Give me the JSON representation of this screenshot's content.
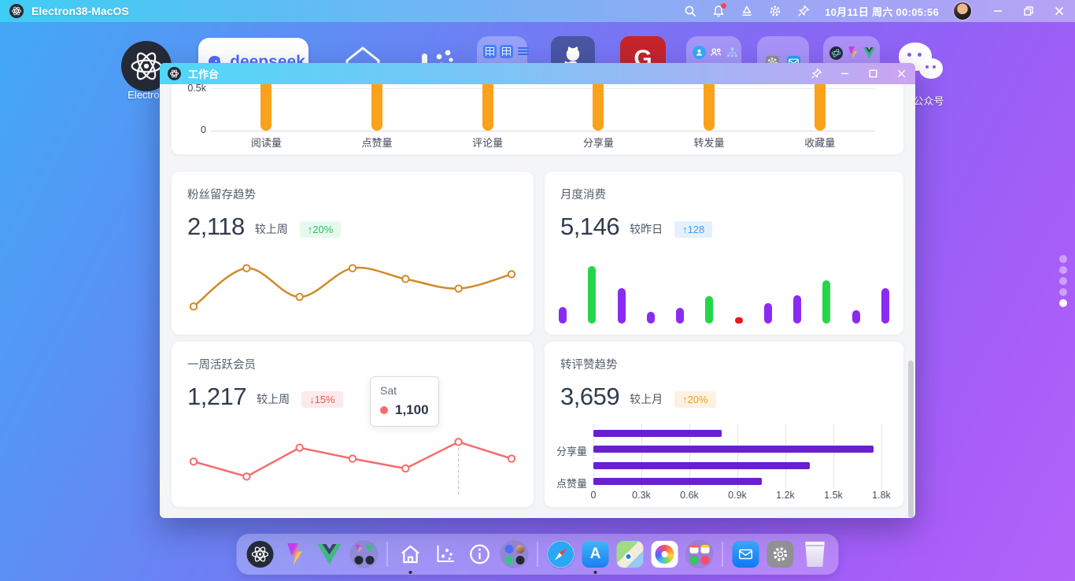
{
  "menubar": {
    "title": "Electron38-MacOS",
    "datetime": "10月11日 周六 00:05:56",
    "icons": [
      "search-icon",
      "bell-icon",
      "ink-icon",
      "gear-icon",
      "pin-icon",
      "avatar",
      "minimize",
      "restore",
      "close"
    ]
  },
  "desktop": {
    "labels": {
      "electron": "Electron",
      "deepseek": "deepseek",
      "wechat": "公众号"
    },
    "icons": [
      "electron",
      "deepseek",
      "home",
      "analytics",
      "table-group",
      "github",
      "g-app",
      "users-group",
      "tools-group",
      "dev-group",
      "wechat"
    ],
    "pagination_dots": {
      "count": 5,
      "active_index": 4
    }
  },
  "window": {
    "title": "工作台",
    "cards": {
      "top": {
        "y_ticks": [
          "0.5k",
          "0"
        ]
      },
      "fan": {
        "title": "粉丝留存趋势",
        "value": "2,118",
        "compare": "较上周",
        "badge": "↑20%"
      },
      "monthly": {
        "title": "月度消费",
        "value": "5,146",
        "compare": "较昨日",
        "badge": "↑128"
      },
      "weekly": {
        "title": "一周活跃会员",
        "value": "1,217",
        "compare": "较上周",
        "badge": "↓15%",
        "tooltip": {
          "label": "Sat",
          "value": "1,100"
        }
      },
      "trend": {
        "title": "转评赞趋势",
        "value": "3,659",
        "compare": "较上月",
        "badge": "↑20%"
      }
    }
  },
  "dock": {
    "items": [
      "electron",
      "vite",
      "vue",
      "dev-app-group",
      "divider",
      "home",
      "analytics",
      "info",
      "web-app-group",
      "divider",
      "safari",
      "app-store",
      "maps",
      "photos",
      "productivity-app-group",
      "divider",
      "mail",
      "settings",
      "trash"
    ],
    "active_items": [
      "home",
      "app-store"
    ]
  },
  "colors": {
    "bar_orange": "#faa21c",
    "line_orange": "#d08b2a",
    "line_red": "#f56c6c",
    "bar_purple": "#8a2cf0",
    "bar_green": "#26d64a",
    "bar_red": "#f21414",
    "hbar_purple": "#6a1fd0",
    "badge_green": "#21c35e",
    "badge_blue": "#3f9ef8",
    "badge_red": "#f25555",
    "badge_orange": "#f79b1d",
    "titlebar_gradient": [
      "#4fd8f8",
      "#cba4f3"
    ],
    "desktop_gradient": [
      "#41a9f6",
      "#b263f9"
    ]
  },
  "chart_data": [
    {
      "id": "content-stats",
      "type": "bar",
      "categories": [
        "阅读量",
        "点赞量",
        "评论量",
        "分享量",
        "转发量",
        "收藏量"
      ],
      "values": [
        500,
        500,
        500,
        500,
        500,
        500
      ],
      "values_note": "all bars clipped at top of scrolled view; visible y-range 0–0.5k",
      "y_ticks": [
        "0",
        "0.5k"
      ],
      "ylim": [
        0,
        500
      ],
      "color": "#faa21c",
      "grid": true
    },
    {
      "id": "fan-retention",
      "type": "line",
      "smooth": true,
      "values": [
        18,
        82,
        34,
        82,
        64,
        48,
        72
      ],
      "ylim": [
        0,
        100
      ],
      "values_note": "relative curve heights, no axes shown",
      "color": "#d08b2a",
      "stat": {
        "value": "2,118",
        "compare": "较上周",
        "delta": "↑20%"
      }
    },
    {
      "id": "monthly-consumption",
      "type": "bar",
      "values": [
        26,
        91,
        56,
        19,
        25,
        44,
        10,
        33,
        45,
        69,
        21,
        56
      ],
      "values_note": "relative bar heights %, no axes shown",
      "colors": [
        "#8a2cf0",
        "#26d64a",
        "#8a2cf0",
        "#8a2cf0",
        "#8a2cf0",
        "#26d64a",
        "#f21414",
        "#8a2cf0",
        "#8a2cf0",
        "#26d64a",
        "#8a2cf0",
        "#8a2cf0"
      ],
      "stat": {
        "value": "5,146",
        "compare": "较昨日",
        "delta": "↑128"
      }
    },
    {
      "id": "weekly-active",
      "type": "line",
      "smooth": false,
      "values": [
        930,
        800,
        1050,
        955,
        870,
        1100,
        955
      ],
      "ylim": [
        700,
        1150
      ],
      "values_note": "only Sat=1,100 labeled via tooltip; others estimated",
      "highlight_index": 5,
      "tooltip": {
        "label": "Sat",
        "value": "1,100"
      },
      "color": "#f56c6c",
      "stat": {
        "value": "1,217",
        "compare": "较上周",
        "delta": "↓15%"
      }
    },
    {
      "id": "share-comment-like-trend",
      "type": "bar-horizontal",
      "values": [
        800,
        1750,
        1350,
        1050
      ],
      "row_labels": [
        "",
        "分享量",
        "",
        "点赞量"
      ],
      "xlim": [
        0,
        1800
      ],
      "x_ticks": [
        "0",
        "0.3k",
        "0.6k",
        "0.9k",
        "1.2k",
        "1.5k",
        "1.8k"
      ],
      "color": "#6a1fd0",
      "stat": {
        "value": "3,659",
        "compare": "较上月",
        "delta": "↑20%"
      }
    }
  ]
}
